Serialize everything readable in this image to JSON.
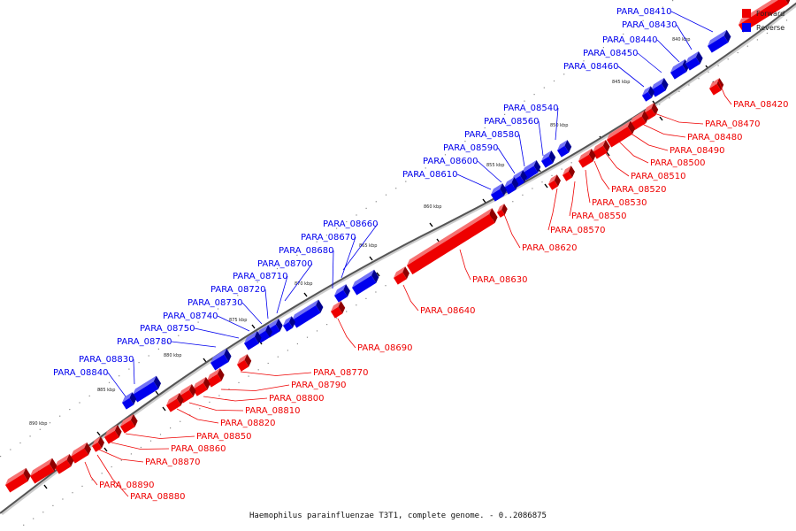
{
  "colors": {
    "forward": "#ee0000",
    "reverse": "#0000ee",
    "axis": "#555555"
  },
  "legend": {
    "forward_label": "Forward",
    "reverse_label": "Reverse"
  },
  "ticks": [
    "840 kbp",
    "845 kbp",
    "850 kbp",
    "855 kbp",
    "860 kbp",
    "865 kbp",
    "870 kbp",
    "875 kbp",
    "880 kbp",
    "885 kbp",
    "890 kbp"
  ],
  "genes_reverse": [
    "PARA_08410",
    "PARA_08430",
    "PARA_08440",
    "PARA_08450",
    "PARA_08460",
    "PARA_08540",
    "PARA_08560",
    "PARA_08580",
    "PARA_08590",
    "PARA_08600",
    "PARA_08610",
    "PARA_08660",
    "PARA_08670",
    "PARA_08680",
    "PARA_08700",
    "PARA_08710",
    "PARA_08720",
    "PARA_08730",
    "PARA_08740",
    "PARA_08750",
    "PARA_08780",
    "PARA_08830",
    "PARA_08840"
  ],
  "genes_forward": [
    "PARA_08420",
    "PARA_08470",
    "PARA_08480",
    "PARA_08490",
    "PARA_08500",
    "PARA_08510",
    "PARA_08520",
    "PARA_08530",
    "PARA_08550",
    "PARA_08570",
    "PARA_08620",
    "PARA_08630",
    "PARA_08640",
    "PARA_08690",
    "PARA_08770",
    "PARA_08790",
    "PARA_08800",
    "PARA_08810",
    "PARA_08820",
    "PARA_08850",
    "PARA_08860",
    "PARA_08870",
    "PARA_08890",
    "PARA_08880"
  ],
  "caption": "Haemophilus parainfluenzae T3T1, complete genome. - 0..2086875"
}
